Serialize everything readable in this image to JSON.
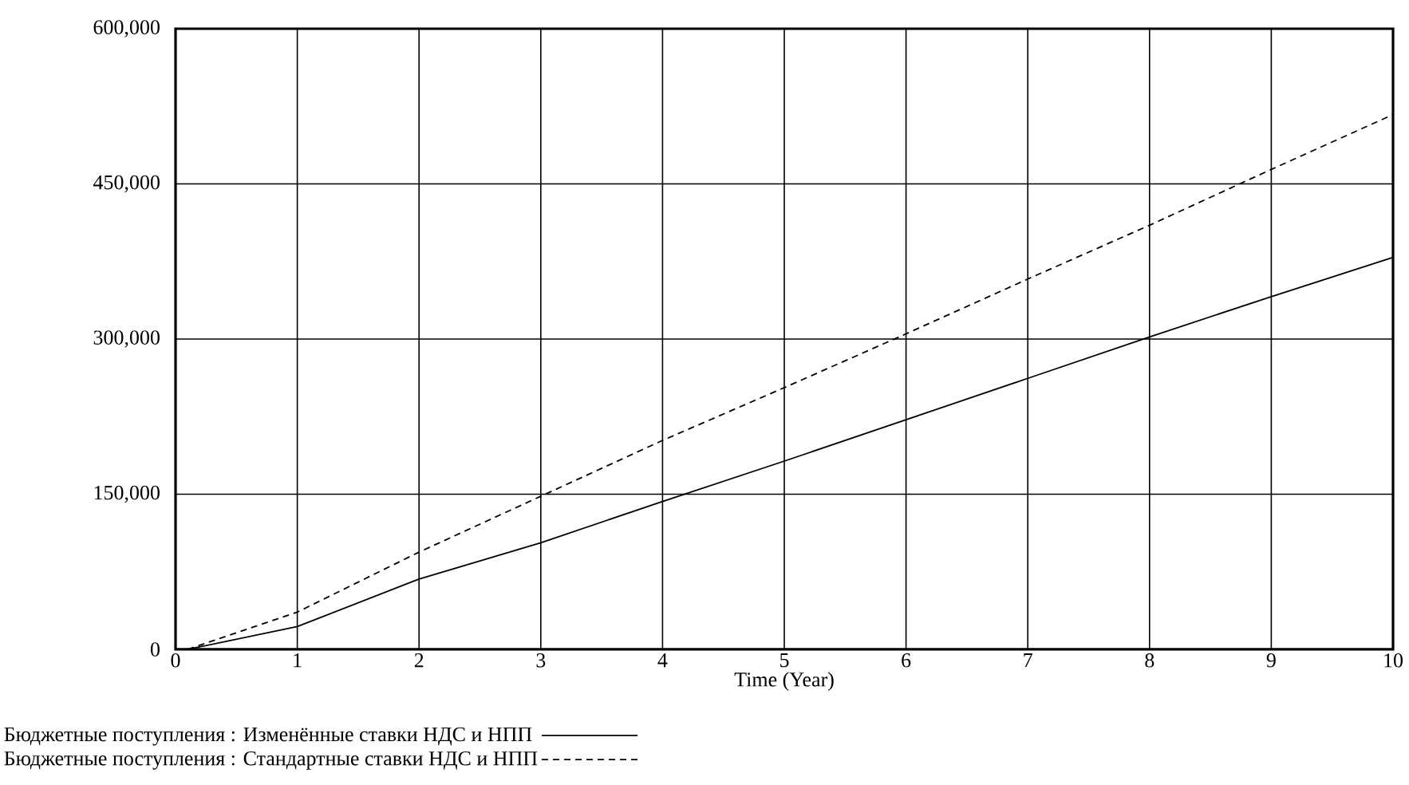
{
  "chart_data": {
    "type": "line",
    "xlabel": "Time (Year)",
    "x": [
      0.1,
      1,
      2,
      3,
      4,
      5,
      6,
      7,
      8,
      9,
      10
    ],
    "series": [
      {
        "name": "Бюджетные поступления : Изменённые ставки НДС и НПП",
        "color": "#000000",
        "line_style": "solid",
        "values": [
          0,
          22000,
          68000,
          103000,
          143000,
          182000,
          222000,
          262000,
          302000,
          341000,
          379000
        ]
      },
      {
        "name": "Бюджетные поступления : Стандартные ставки НДС и НПП",
        "color": "#000000",
        "line_style": "dashed",
        "values": [
          0,
          36000,
          94000,
          148000,
          202000,
          253000,
          305000,
          358000,
          410000,
          464000,
          517000
        ]
      }
    ],
    "xlim": [
      0,
      10
    ],
    "xticks": [
      0,
      1,
      2,
      3,
      4,
      5,
      6,
      7,
      8,
      9,
      10
    ],
    "ylim": [
      0,
      600000
    ],
    "yticks": [
      0,
      {
        "value": 150000,
        "label": "150,000"
      },
      {
        "value": 300000,
        "label": "300,000"
      },
      {
        "value": 450000,
        "label": "450,000"
      },
      {
        "value": 600000,
        "label": "600,000"
      }
    ],
    "grid": true,
    "legend": "bottom",
    "marker": "none"
  }
}
